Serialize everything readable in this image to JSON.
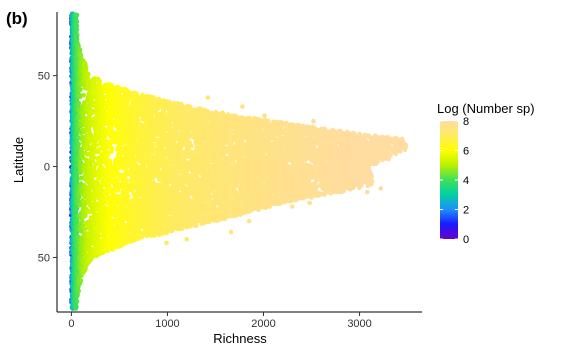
{
  "chart_data": {
    "type": "scatter",
    "panel_label": "(b)",
    "xlabel": "Richness",
    "ylabel": "Latitude",
    "xlim": [
      -150,
      3650
    ],
    "ylim": [
      -80,
      85
    ],
    "x_ticks": [
      0,
      1000,
      2000,
      3000
    ],
    "x_tick_labels": [
      "0",
      "1000",
      "2000",
      "3000"
    ],
    "y_ticks": [
      50,
      0,
      -50
    ],
    "y_tick_labels": [
      "50",
      "0",
      "50"
    ],
    "grid": false,
    "legend": {
      "title": "Log (Number sp)",
      "placement": "right",
      "range": [
        0,
        8
      ],
      "ticks": [
        8,
        6,
        4,
        2,
        0
      ],
      "tick_labels": [
        "8",
        "6",
        "4",
        "2",
        "0"
      ],
      "colors": [
        "#6a00c8",
        "#1a1aff",
        "#1e90ff",
        "#00d0a0",
        "#3ee05a",
        "#b8f000",
        "#ffff00",
        "#ffeb60",
        "#ffdca0"
      ]
    },
    "envelope": {
      "latitude": [
        84,
        70,
        60,
        50,
        45,
        40,
        30,
        20,
        15,
        10,
        0,
        -10,
        -15,
        -20,
        -30,
        -40,
        -50,
        -60,
        -70,
        -78
      ],
      "max_richness": [
        15,
        60,
        110,
        200,
        400,
        700,
        1500,
        2700,
        3450,
        3500,
        3100,
        3150,
        2700,
        2200,
        1500,
        700,
        220,
        110,
        70,
        20
      ]
    },
    "points": [
      {
        "x": 3480,
        "y": 12
      },
      {
        "x": 3420,
        "y": 10
      },
      {
        "x": 3050,
        "y": 12
      },
      {
        "x": 2720,
        "y": 20
      },
      {
        "x": 3220,
        "y": -12
      },
      {
        "x": 3080,
        "y": -14
      },
      {
        "x": 2880,
        "y": -8
      },
      {
        "x": 2520,
        "y": 25
      },
      {
        "x": 2300,
        "y": -22
      },
      {
        "x": 2480,
        "y": -20
      },
      {
        "x": 2050,
        "y": 25
      },
      {
        "x": 1780,
        "y": 33
      },
      {
        "x": 1660,
        "y": -36
      },
      {
        "x": 1850,
        "y": -30
      },
      {
        "x": 2010,
        "y": 28
      },
      {
        "x": 1420,
        "y": 38
      },
      {
        "x": 990,
        "y": -42
      },
      {
        "x": 1200,
        "y": -40
      },
      {
        "x": 2920,
        "y": 8
      },
      {
        "x": 2660,
        "y": -4
      },
      {
        "x": 3300,
        "y": 4
      }
    ]
  }
}
